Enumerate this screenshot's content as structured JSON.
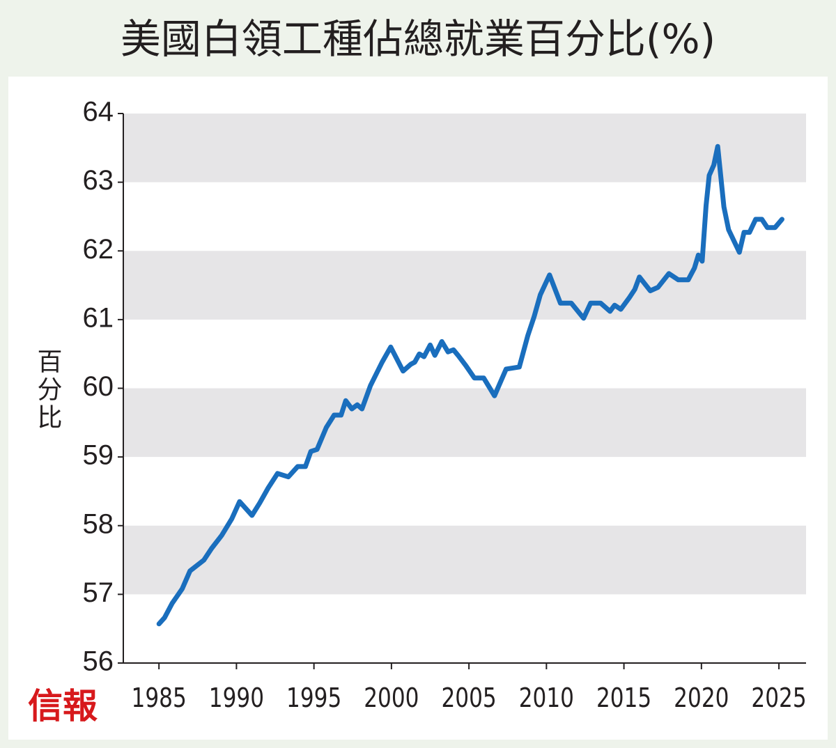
{
  "chart_data": {
    "type": "line",
    "title": "美國白領工種佔總就業百分比(%)",
    "y_label": "百分比",
    "watermark": "信報",
    "color": "#1a6ebd",
    "grid": "bands",
    "x": [
      1985.0,
      1985.36,
      1985.85,
      1986.5,
      1987.0,
      1987.9,
      1988.4,
      1989.05,
      1989.7,
      1990.2,
      1991.0,
      1991.5,
      1992.05,
      1992.65,
      1993.35,
      1993.95,
      1994.45,
      1994.8,
      1995.2,
      1995.8,
      1996.3,
      1996.75,
      1997.05,
      1997.45,
      1997.8,
      1998.1,
      1998.65,
      1999.4,
      1999.95,
      2000.75,
      2001.25,
      2001.5,
      2001.8,
      2002.1,
      2002.5,
      2002.8,
      2003.25,
      2003.65,
      2004.0,
      2004.3,
      2004.8,
      2005.35,
      2005.95,
      2006.65,
      2007.4,
      2008.25,
      2008.8,
      2009.2,
      2009.6,
      2010.2,
      2010.9,
      2011.6,
      2012.4,
      2012.85,
      2013.5,
      2014.1,
      2014.4,
      2014.8,
      2015.35,
      2015.7,
      2016.0,
      2016.7,
      2017.2,
      2017.9,
      2018.5,
      2019.15,
      2019.55,
      2019.8,
      2020.05,
      2020.3,
      2020.5,
      2020.8,
      2021.05,
      2021.45,
      2021.75,
      2022.45,
      2022.75,
      2023.1,
      2023.5,
      2023.9,
      2024.25,
      2024.75,
      2025.2
    ],
    "values": [
      56.57,
      56.66,
      56.87,
      57.08,
      57.34,
      57.5,
      57.67,
      57.86,
      58.1,
      58.35,
      58.15,
      58.33,
      58.55,
      58.76,
      58.71,
      58.86,
      58.86,
      59.08,
      59.11,
      59.43,
      59.61,
      59.61,
      59.82,
      59.7,
      59.76,
      59.7,
      60.04,
      60.38,
      60.6,
      60.25,
      60.35,
      60.38,
      60.5,
      60.46,
      60.63,
      60.48,
      60.68,
      60.53,
      60.56,
      60.48,
      60.33,
      60.15,
      60.15,
      59.89,
      60.28,
      60.31,
      60.77,
      61.04,
      61.36,
      61.65,
      61.24,
      61.24,
      61.02,
      61.24,
      61.24,
      61.12,
      61.21,
      61.15,
      61.32,
      61.44,
      61.62,
      61.42,
      61.47,
      61.67,
      61.58,
      61.58,
      61.75,
      61.94,
      61.85,
      62.66,
      63.1,
      63.25,
      63.52,
      62.64,
      62.31,
      61.98,
      62.27,
      62.27,
      62.46,
      62.46,
      62.34,
      62.34,
      62.46
    ],
    "xlim": [
      1982.7,
      2026.75
    ],
    "xticks": [
      1985,
      1990,
      1995,
      2000,
      2005,
      2010,
      2015,
      2020,
      2025
    ],
    "ylim": [
      56,
      64
    ],
    "yticks": [
      56,
      57,
      58,
      59,
      60,
      61,
      62,
      63,
      64
    ]
  }
}
